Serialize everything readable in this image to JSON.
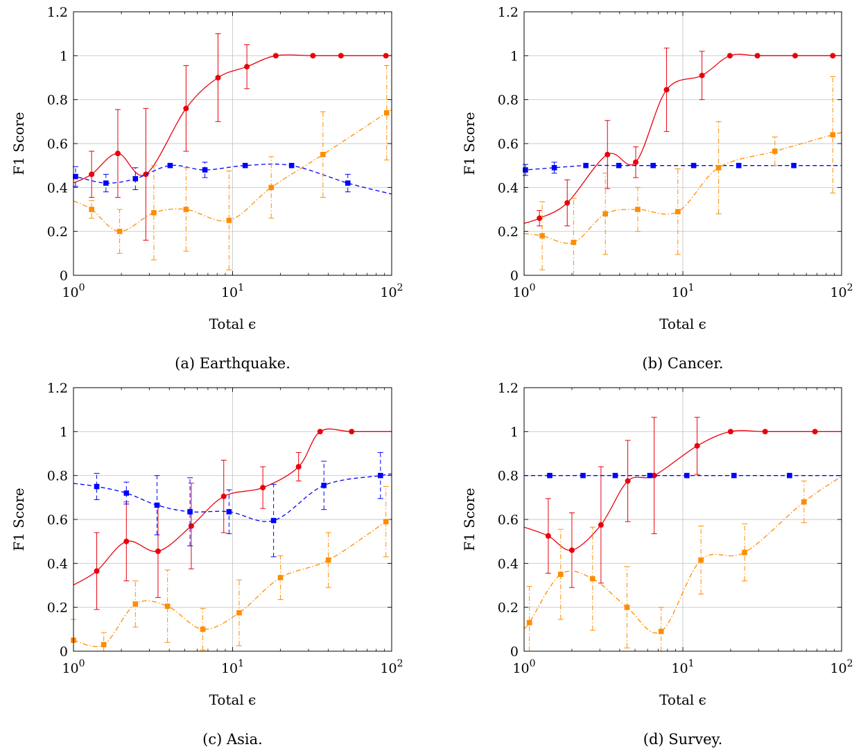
{
  "chart_data": [
    {
      "type": "line",
      "caption": "(a) Earthquake.",
      "xlabel": "Total ϵ",
      "ylabel": "F1 Score",
      "xscale": "log",
      "xlim": [
        1,
        100
      ],
      "ylim": [
        0,
        1.2
      ],
      "xticks": [
        "10",
        "10",
        "10"
      ],
      "xtick_exponents": [
        "0",
        "1",
        "2"
      ],
      "yticks": [
        "0",
        "0.2",
        "0.4",
        "0.6",
        "0.8",
        "1",
        "1.2"
      ],
      "grid": true,
      "series": [
        {
          "color": "#e8000b",
          "style": "solid",
          "marker": "circle",
          "x": [
            1.3,
            1.9,
            2.85,
            5.1,
            8.1,
            12.3,
            18.7,
            32,
            48,
            92
          ],
          "y": [
            0.46,
            0.555,
            0.46,
            0.76,
            0.9,
            0.95,
            1.0,
            1.0,
            1.0,
            1.0
          ],
          "err": [
            0.105,
            0.2,
            0.3,
            0.195,
            0.2,
            0.1,
            0,
            0,
            0,
            0
          ]
        },
        {
          "color": "#0000ff",
          "style": "dashed",
          "marker": "square",
          "x": [
            1.03,
            1.6,
            2.45,
            4.05,
            6.7,
            12,
            23.5,
            53
          ],
          "y": [
            0.45,
            0.42,
            0.44,
            0.5,
            0.48,
            0.5,
            0.5,
            0.42
          ],
          "err": [
            0.045,
            0.04,
            0.05,
            0,
            0.035,
            0,
            0,
            0.04
          ]
        },
        {
          "color": "#ff8c00",
          "style": "dashdot",
          "marker": "square",
          "x": [
            1.3,
            1.95,
            3.2,
            5.1,
            9.5,
            17.5,
            37,
            93
          ],
          "y": [
            0.3,
            0.2,
            0.285,
            0.3,
            0.25,
            0.4,
            0.55,
            0.74
          ],
          "err": [
            0.04,
            0.1,
            0.215,
            0.19,
            0.225,
            0.14,
            0.195,
            0.215
          ]
        }
      ]
    },
    {
      "type": "line",
      "caption": "(b) Cancer.",
      "xlabel": "Total ϵ",
      "ylabel": "F1 Score",
      "xscale": "log",
      "xlim": [
        1,
        100
      ],
      "ylim": [
        0,
        1.2
      ],
      "xticks": [
        "10",
        "10",
        "10"
      ],
      "xtick_exponents": [
        "0",
        "1",
        "2"
      ],
      "yticks": [
        "0",
        "0.2",
        "0.4",
        "0.6",
        "0.8",
        "1",
        "1.2"
      ],
      "grid": true,
      "series": [
        {
          "color": "#e8000b",
          "style": "solid",
          "marker": "circle",
          "x": [
            1.25,
            1.87,
            3.35,
            5.05,
            7.9,
            13.2,
            19.8,
            29.5,
            51,
            88
          ],
          "y": [
            0.26,
            0.33,
            0.55,
            0.515,
            0.845,
            0.91,
            1.0,
            1.0,
            1.0,
            1.0
          ],
          "err": [
            0.035,
            0.105,
            0.155,
            0.07,
            0.19,
            0.11,
            0,
            0,
            0,
            0
          ]
        },
        {
          "color": "#0000ff",
          "style": "dashed",
          "marker": "square",
          "x": [
            1.02,
            1.55,
            2.45,
            3.95,
            6.5,
            11.7,
            22.5,
            50
          ],
          "y": [
            0.48,
            0.49,
            0.5,
            0.5,
            0.5,
            0.5,
            0.5,
            0.5
          ],
          "err": [
            0.025,
            0.025,
            0,
            0,
            0,
            0,
            0,
            0
          ]
        },
        {
          "color": "#ff8c00",
          "style": "dashdot",
          "marker": "square",
          "x": [
            1.3,
            2.05,
            3.25,
            5.2,
            9.3,
            16.8,
            38,
            88
          ],
          "y": [
            0.18,
            0.15,
            0.28,
            0.3,
            0.29,
            0.49,
            0.565,
            0.64
          ],
          "err": [
            0.155,
            0.2,
            0.185,
            0.1,
            0.195,
            0.21,
            0.065,
            0.265
          ]
        }
      ]
    },
    {
      "type": "line",
      "caption": "(c) Asia.",
      "xlabel": "Total ϵ",
      "ylabel": "F1 Score",
      "xscale": "log",
      "xlim": [
        1,
        100
      ],
      "ylim": [
        0,
        1.2
      ],
      "xticks": [
        "10",
        "10",
        "10"
      ],
      "xtick_exponents": [
        "0",
        "1",
        "2"
      ],
      "yticks": [
        "0",
        "0.2",
        "0.4",
        "0.6",
        "0.8",
        "1",
        "1.2"
      ],
      "grid": true,
      "series": [
        {
          "color": "#e8000b",
          "style": "solid",
          "marker": "circle",
          "x": [
            1.4,
            2.15,
            3.4,
            5.5,
            8.8,
            15.5,
            26,
            35.5,
            56
          ],
          "y": [
            0.365,
            0.5,
            0.455,
            0.57,
            0.705,
            0.745,
            0.84,
            1.0,
            1.0
          ],
          "err": [
            0.175,
            0.18,
            0.21,
            0.195,
            0.165,
            0.095,
            0.065,
            0,
            0
          ]
        },
        {
          "color": "#0000ff",
          "style": "dashed",
          "marker": "square",
          "x": [
            1.4,
            2.15,
            3.35,
            5.4,
            9.5,
            18.1,
            37.5,
            85
          ],
          "y": [
            0.75,
            0.72,
            0.665,
            0.635,
            0.635,
            0.595,
            0.755,
            0.8
          ],
          "err": [
            0.06,
            0.05,
            0.135,
            0.155,
            0.1,
            0.165,
            0.11,
            0.105
          ]
        },
        {
          "color": "#ff8c00",
          "style": "dashdot",
          "marker": "square",
          "x": [
            1.0,
            1.55,
            2.45,
            3.9,
            6.5,
            11,
            20,
            40,
            92
          ],
          "y": [
            0.05,
            0.03,
            0.215,
            0.205,
            0.1,
            0.175,
            0.335,
            0.415,
            0.59
          ],
          "err": [
            0.095,
            0.055,
            0.105,
            0.165,
            0.095,
            0.15,
            0.1,
            0.125,
            0.16
          ]
        }
      ]
    },
    {
      "type": "line",
      "caption": "(d) Survey.",
      "xlabel": "Total ϵ",
      "ylabel": "F1 Score",
      "xscale": "log",
      "xlim": [
        1,
        100
      ],
      "ylim": [
        0,
        1.2
      ],
      "xticks": [
        "10",
        "10",
        "10"
      ],
      "xtick_exponents": [
        "0",
        "1",
        "2"
      ],
      "yticks": [
        "0",
        "0.2",
        "0.4",
        "0.6",
        "0.8",
        "1",
        "1.2"
      ],
      "grid": true,
      "series": [
        {
          "color": "#e8000b",
          "style": "solid",
          "marker": "circle",
          "x": [
            1.42,
            2.0,
            3.05,
            4.5,
            6.6,
            12.3,
            20,
            33,
            68
          ],
          "y": [
            0.525,
            0.46,
            0.575,
            0.775,
            0.8,
            0.935,
            1.0,
            1.0,
            1.0
          ],
          "err": [
            0.17,
            0.17,
            0.265,
            0.185,
            0.265,
            0.13,
            0,
            0,
            0
          ]
        },
        {
          "color": "#0000ff",
          "style": "dashed",
          "marker": "square",
          "x": [
            1.45,
            2.35,
            3.75,
            6.2,
            10.6,
            21,
            47
          ],
          "y": [
            0.8,
            0.8,
            0.8,
            0.8,
            0.8,
            0.8,
            0.8
          ],
          "err": [
            0,
            0,
            0,
            0,
            0,
            0,
            0
          ]
        },
        {
          "color": "#ff8c00",
          "style": "dashdot",
          "marker": "square",
          "x": [
            1.08,
            1.7,
            2.7,
            4.45,
            7.3,
            13,
            24.5,
            58
          ],
          "y": [
            0.13,
            0.35,
            0.33,
            0.2,
            0.09,
            0.415,
            0.45,
            0.68
          ],
          "err": [
            0.165,
            0.205,
            0.235,
            0.185,
            0.11,
            0.155,
            0.13,
            0.095
          ]
        }
      ]
    }
  ]
}
